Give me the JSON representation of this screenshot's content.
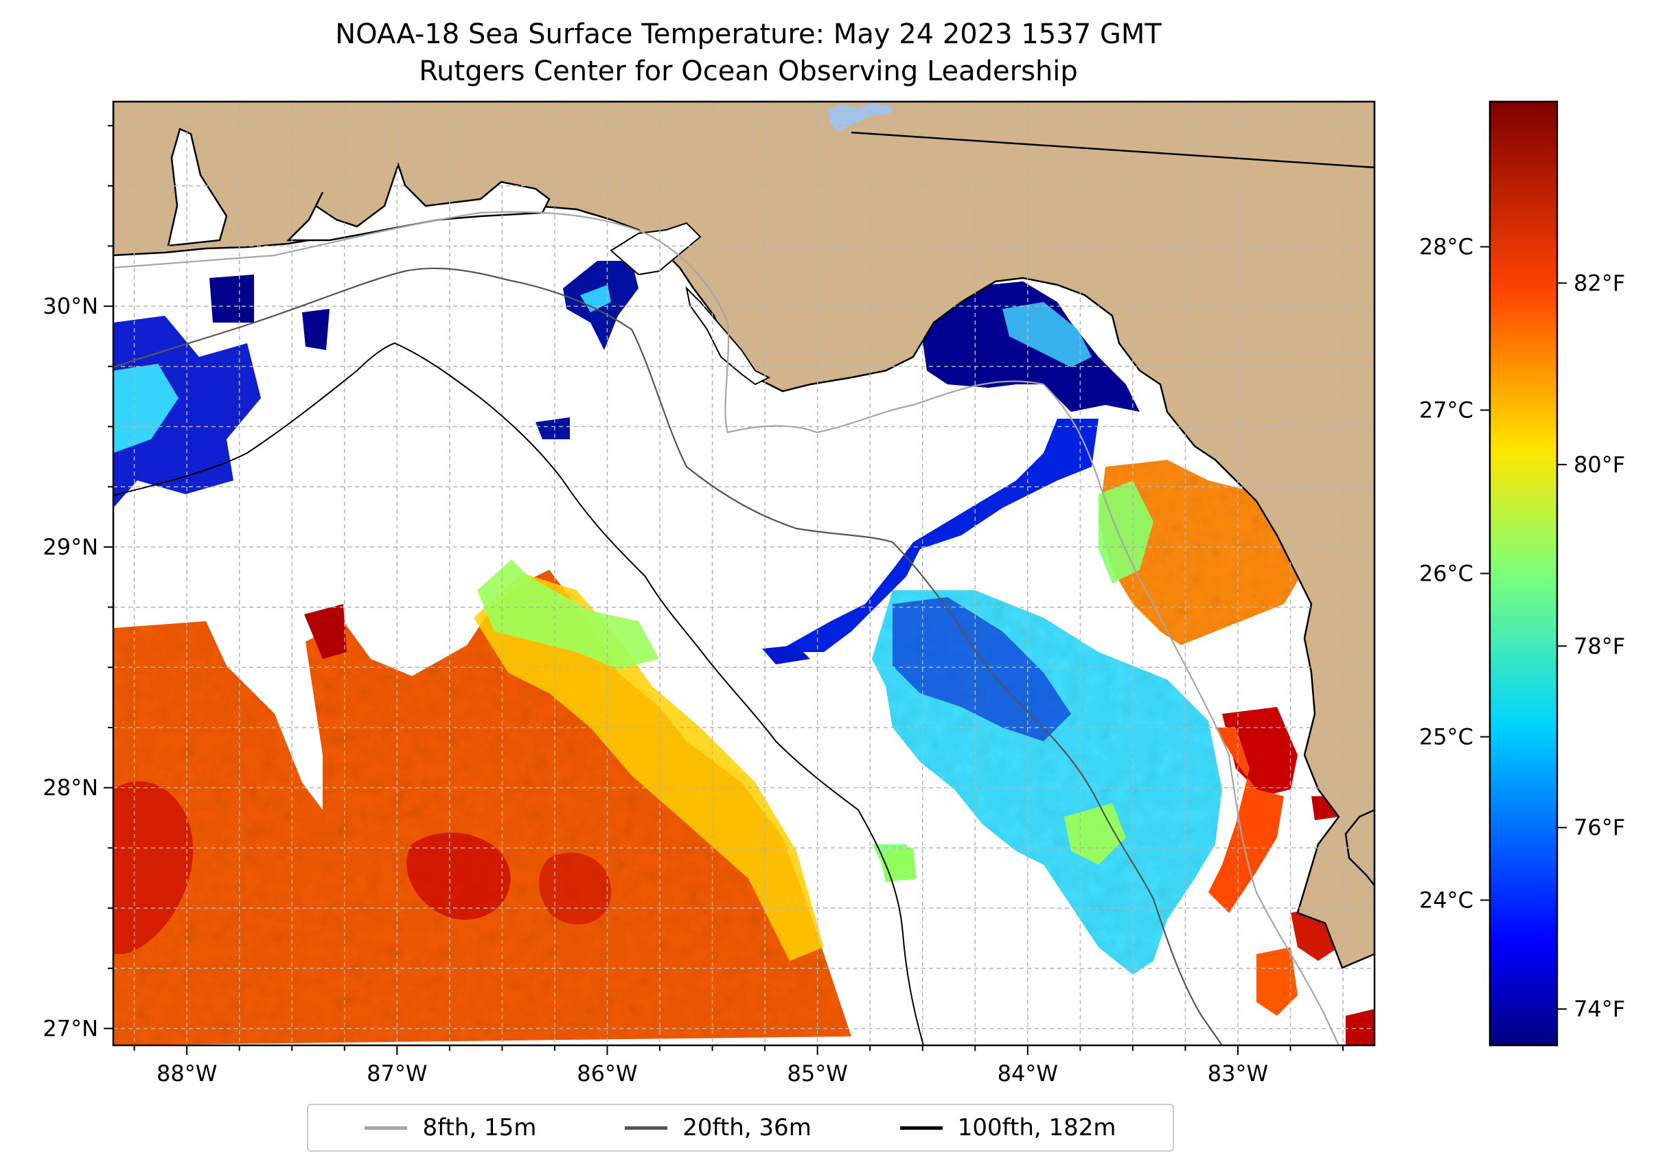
{
  "title": {
    "line1": "NOAA-18 Sea Surface Temperature: May 24 2023 1537 GMT",
    "line2": "Rutgers Center for Ocean Observing Leadership"
  },
  "map": {
    "lon_range": [
      -88.35,
      -82.35
    ],
    "lat_range": [
      26.93,
      30.85
    ],
    "lon_ticks": [
      {
        "value": -88,
        "label": "88°W"
      },
      {
        "value": -87,
        "label": "87°W"
      },
      {
        "value": -86,
        "label": "86°W"
      },
      {
        "value": -85,
        "label": "85°W"
      },
      {
        "value": -84,
        "label": "84°W"
      },
      {
        "value": -83,
        "label": "83°W"
      }
    ],
    "lat_ticks": [
      {
        "value": 27,
        "label": "27°N"
      },
      {
        "value": 28,
        "label": "28°N"
      },
      {
        "value": 29,
        "label": "29°N"
      },
      {
        "value": 30,
        "label": "30°N"
      }
    ],
    "colors": {
      "land": "#d2b48c",
      "gridline": "#b4b4b4",
      "lake": "#a4c2e6"
    }
  },
  "colorbar": {
    "range_f": [
      73.6,
      84.0
    ],
    "colormap": "jet",
    "fahrenheit_ticks": [
      {
        "value": 74,
        "label": "74°F"
      },
      {
        "value": 76,
        "label": "76°F"
      },
      {
        "value": 78,
        "label": "78°F"
      },
      {
        "value": 80,
        "label": "80°F"
      },
      {
        "value": 82,
        "label": "82°F"
      }
    ],
    "celsius_ticks": [
      {
        "value": 24,
        "label": "24°C"
      },
      {
        "value": 25,
        "label": "25°C"
      },
      {
        "value": 26,
        "label": "26°C"
      },
      {
        "value": 27,
        "label": "27°C"
      },
      {
        "value": 28,
        "label": "28°C"
      }
    ]
  },
  "legend": {
    "placement": "bottom-center",
    "items": [
      {
        "label": "8fth, 15m",
        "color": "#a6a6a6"
      },
      {
        "label": "20fth, 36m",
        "color": "#555555"
      },
      {
        "label": "100fth, 182m",
        "color": "#000000"
      }
    ]
  }
}
